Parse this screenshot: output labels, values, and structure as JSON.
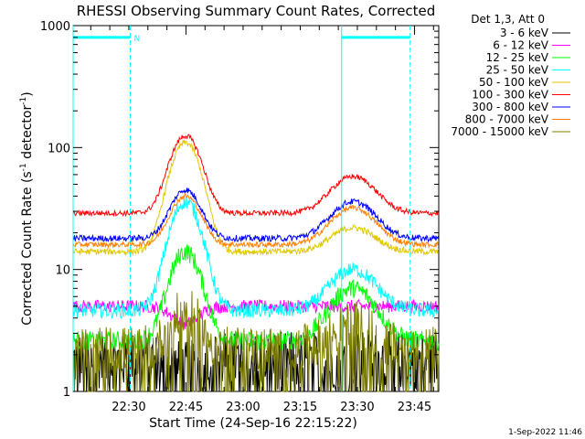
{
  "chart_data": {
    "type": "line",
    "title": "RHESSI Observing Summary Count Rates, Corrected",
    "xlabel": "Start Time (24-Sep-16 22:15:22)",
    "ylabel": "Corrected Count Rate (s⁻¹ detector⁻¹)",
    "ylabel_main": "Corrected Count Rate (s",
    "ylabel_sup1": "-1",
    "ylabel_mid": " detector",
    "ylabel_sup2": "-1",
    "ylabel_end": ")",
    "yscale": "log",
    "ylim": [
      1,
      1000
    ],
    "y_ticks": [
      {
        "value": 1,
        "label": "1"
      },
      {
        "value": 10,
        "label": "10"
      },
      {
        "value": 100,
        "label": "100"
      },
      {
        "value": 1000,
        "label": "1000"
      }
    ],
    "xlim_minutes": [
      0,
      96
    ],
    "x_ticks": [
      {
        "minute": 14.63,
        "label": "22:30"
      },
      {
        "minute": 29.63,
        "label": "22:45"
      },
      {
        "minute": 44.63,
        "label": "23:00"
      },
      {
        "minute": 59.63,
        "label": "23:15"
      },
      {
        "minute": 74.63,
        "label": "23:30"
      },
      {
        "minute": 89.63,
        "label": "23:45"
      }
    ],
    "legend_title": "Det 1,3, Att 0",
    "legend_position": "top-right, outside plot",
    "series": [
      {
        "name": "3 - 6 keV",
        "color": "#000000",
        "base": 1.8,
        "peak1": 1.5,
        "peak2": 1.3,
        "noise": 0.55,
        "floor": 1
      },
      {
        "name": "6 - 12 keV",
        "color": "#ff00ff",
        "base": 5.0,
        "peak1": 3.6,
        "peak2": 2.2,
        "noise": 0.12,
        "floor": 1
      },
      {
        "name": "12 - 25 keV",
        "color": "#00ff00",
        "base": 2.6,
        "peak1": 14,
        "peak2": 7,
        "noise": 0.18,
        "floor": 1
      },
      {
        "name": "25 - 50 keV",
        "color": "#00ffff",
        "base": 4.6,
        "peak1": 36,
        "peak2": 10,
        "noise": 0.14,
        "floor": 1
      },
      {
        "name": "50 - 100 keV",
        "color": "#e0c800",
        "base": 14,
        "peak1": 110,
        "peak2": 22,
        "noise": 0.06,
        "floor": 1
      },
      {
        "name": "100 - 300 keV",
        "color": "#ff0000",
        "base": 29,
        "peak1": 125,
        "peak2": 58,
        "noise": 0.05,
        "floor": 1
      },
      {
        "name": "300 - 800 keV",
        "color": "#0000ff",
        "base": 18,
        "peak1": 45,
        "peak2": 36,
        "noise": 0.06,
        "floor": 1
      },
      {
        "name": "800 - 7000 keV",
        "color": "#ff8000",
        "base": 16,
        "peak1": 40,
        "peak2": 32,
        "noise": 0.05,
        "floor": 1
      },
      {
        "name": "7000 - 15000 keV",
        "color": "#808000",
        "base": 2.2,
        "peak1": 4.5,
        "peak2": 3.5,
        "noise": 0.45,
        "floor": 1
      }
    ],
    "peaks_minutes": [
      29.5,
      73.5
    ],
    "annotations": {
      "saa_markers": [
        {
          "start": 0,
          "end": 15,
          "label": "N"
        },
        {
          "start": 70.5,
          "end": 88.5,
          "label": ""
        }
      ],
      "saa_level": 800,
      "vertical_lines_minutes": [
        0,
        15,
        70.5,
        88.5
      ]
    },
    "footer_date": "1-Sep-2022 11:46"
  },
  "colors": {
    "annotation": "#00ffff"
  }
}
